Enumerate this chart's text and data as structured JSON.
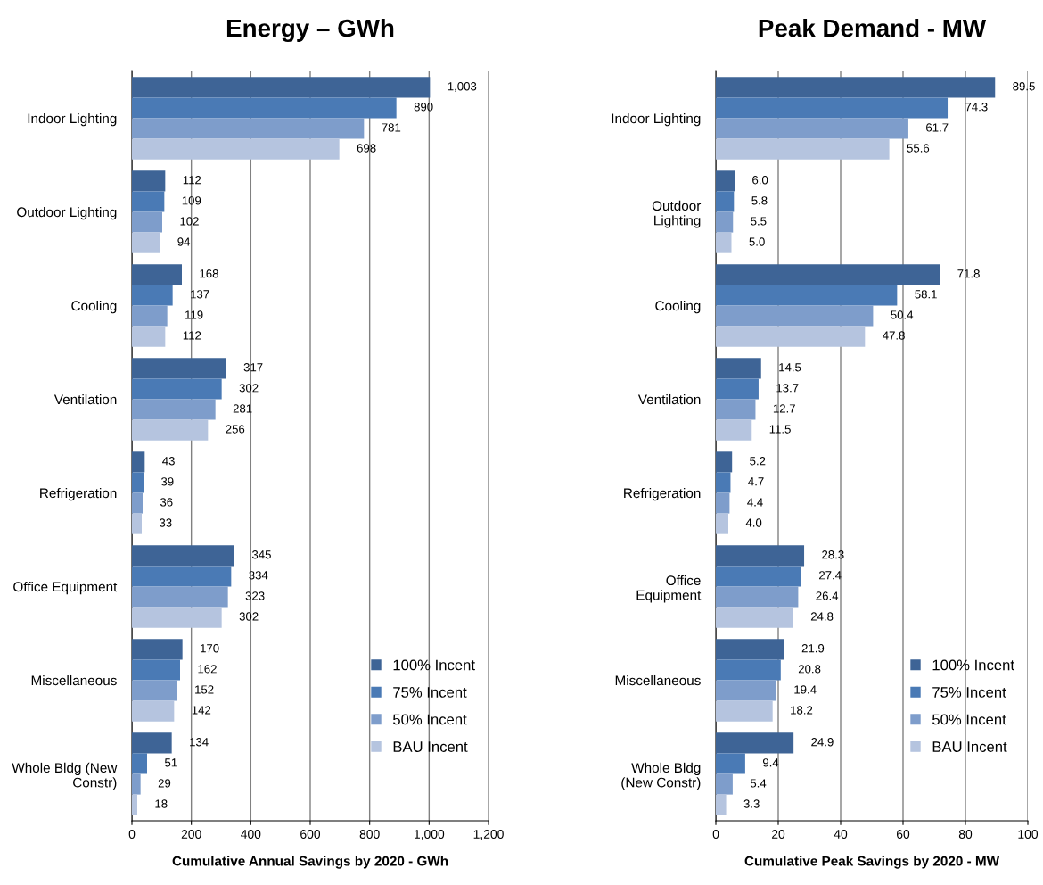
{
  "chart_data": [
    {
      "type": "bar",
      "orientation": "horizontal",
      "title": "Energy – GWh",
      "xlabel": "Cumulative Annual Savings by 2020 - GWh",
      "categories": [
        "Indoor Lighting",
        "Outdoor Lighting",
        "Cooling",
        "Ventilation",
        "Refrigeration",
        "Office Equipment",
        "Miscellaneous",
        "Whole Bldg (New\nConstr)"
      ],
      "series": [
        {
          "name": "100% Incent",
          "color": "#3e6496",
          "values": [
            1003,
            112,
            168,
            317,
            43,
            345,
            170,
            134
          ],
          "value_labels": [
            "1,003",
            "112",
            "168",
            "317",
            "43",
            "345",
            "170",
            "134"
          ]
        },
        {
          "name": "75% Incent",
          "color": "#4a7ab5",
          "values": [
            890,
            109,
            137,
            302,
            39,
            334,
            162,
            51
          ],
          "value_labels": [
            "890",
            "109",
            "137",
            "302",
            "39",
            "334",
            "162",
            "51"
          ]
        },
        {
          "name": "50% Incent",
          "color": "#7e9dcb",
          "values": [
            781,
            102,
            119,
            281,
            36,
            323,
            152,
            29
          ],
          "value_labels": [
            "781",
            "102",
            "119",
            "281",
            "36",
            "323",
            "152",
            "29"
          ]
        },
        {
          "name": "BAU Incent",
          "color": "#b5c4df",
          "values": [
            698,
            94,
            112,
            256,
            33,
            302,
            142,
            18
          ],
          "value_labels": [
            "698",
            "94",
            "112",
            "256",
            "33",
            "302",
            "142",
            "18"
          ]
        }
      ],
      "xlim": [
        0,
        1200
      ],
      "xticks": [
        0,
        200,
        400,
        600,
        800,
        {
          "value": 1000,
          "label": "1,000"
        },
        {
          "value": 1200,
          "label": "1,200"
        }
      ],
      "grid": "x",
      "legend": "bottom right"
    },
    {
      "type": "bar",
      "orientation": "horizontal",
      "title": "Peak Demand - MW",
      "xlabel": "Cumulative Peak Savings by 2020 - MW",
      "categories": [
        "Indoor Lighting",
        "Outdoor\nLighting",
        "Cooling",
        "Ventilation",
        "Refrigeration",
        "Office\nEquipment",
        "Miscellaneous",
        "Whole Bldg\n(New Constr)"
      ],
      "series": [
        {
          "name": "100% Incent",
          "color": "#3e6496",
          "values": [
            89.5,
            6.0,
            71.8,
            14.5,
            5.2,
            28.3,
            21.9,
            24.9
          ],
          "value_labels": [
            "89.5",
            "6.0",
            "71.8",
            "14.5",
            "5.2",
            "28.3",
            "21.9",
            "24.9"
          ]
        },
        {
          "name": "75% Incent",
          "color": "#4a7ab5",
          "values": [
            74.3,
            5.8,
            58.1,
            13.7,
            4.7,
            27.4,
            20.8,
            9.4
          ],
          "value_labels": [
            "74.3",
            "5.8",
            "58.1",
            "13.7",
            "4.7",
            "27.4",
            "20.8",
            "9.4"
          ]
        },
        {
          "name": "50% Incent",
          "color": "#7e9dcb",
          "values": [
            61.7,
            5.5,
            50.4,
            12.7,
            4.4,
            26.4,
            19.4,
            5.4
          ],
          "value_labels": [
            "61.7",
            "5.5",
            "50.4",
            "12.7",
            "4.4",
            "26.4",
            "19.4",
            "5.4"
          ]
        },
        {
          "name": "BAU Incent",
          "color": "#b5c4df",
          "values": [
            55.6,
            5.0,
            47.8,
            11.5,
            4.0,
            24.8,
            18.2,
            3.3
          ],
          "value_labels": [
            "55.6",
            "5.0",
            "47.8",
            "11.5",
            "4.0",
            "24.8",
            "18.2",
            "3.3"
          ]
        }
      ],
      "xlim": [
        0,
        100
      ],
      "xticks": [
        0,
        20,
        40,
        60,
        80,
        100
      ],
      "grid": "x",
      "legend": "bottom right"
    }
  ]
}
